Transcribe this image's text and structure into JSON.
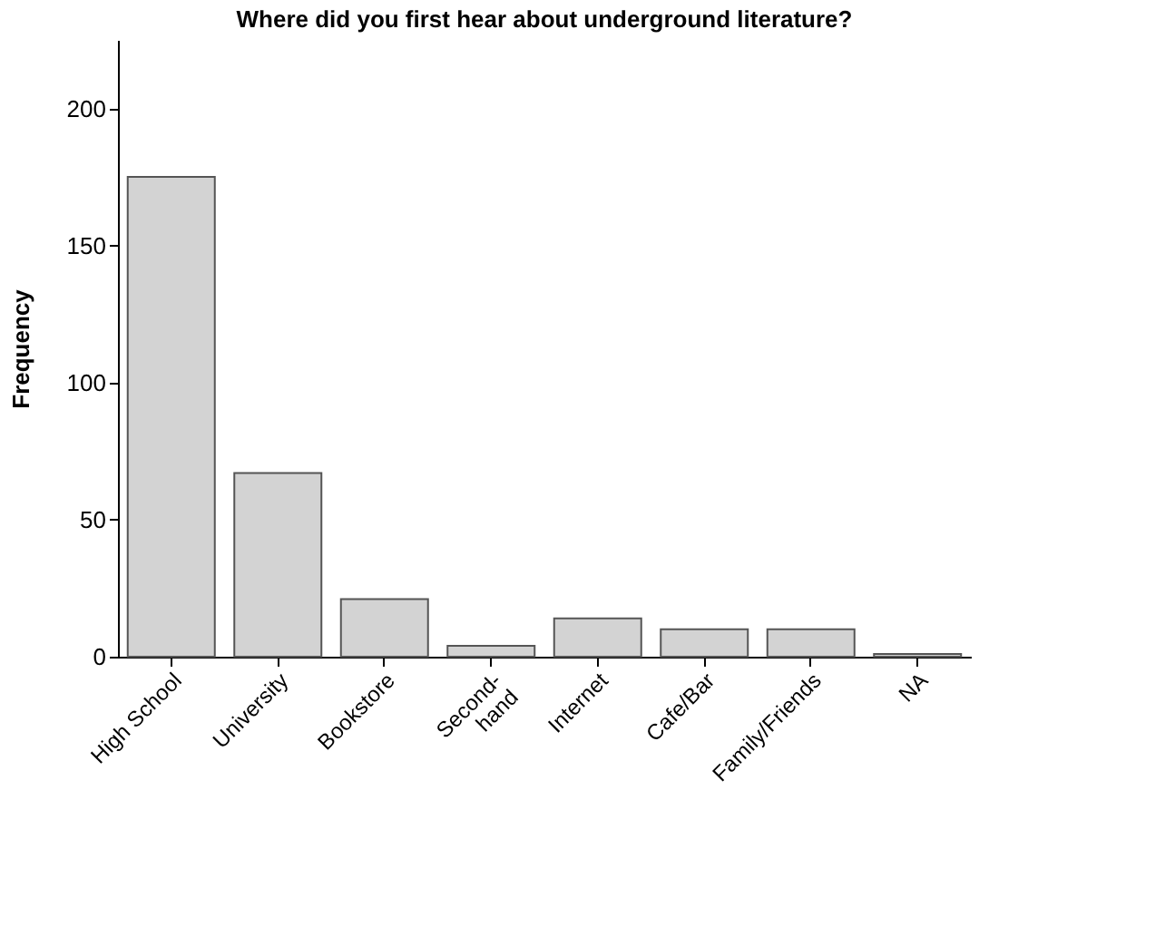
{
  "chart_data": {
    "type": "bar",
    "title": "Where did you first hear about underground literature?",
    "ylabel": "Frequency",
    "categories": [
      "High School",
      "University",
      "Bookstore",
      "Second-\nhand",
      "Internet",
      "Cafe/Bar",
      "Family/Friends",
      "NA"
    ],
    "values": [
      175,
      67,
      21,
      4,
      14,
      10,
      10,
      1
    ],
    "color": "#d3d3d3",
    "ylim": [
      0,
      225
    ],
    "yticks": [
      0,
      50,
      100,
      150,
      200
    ],
    "grid": false
  }
}
